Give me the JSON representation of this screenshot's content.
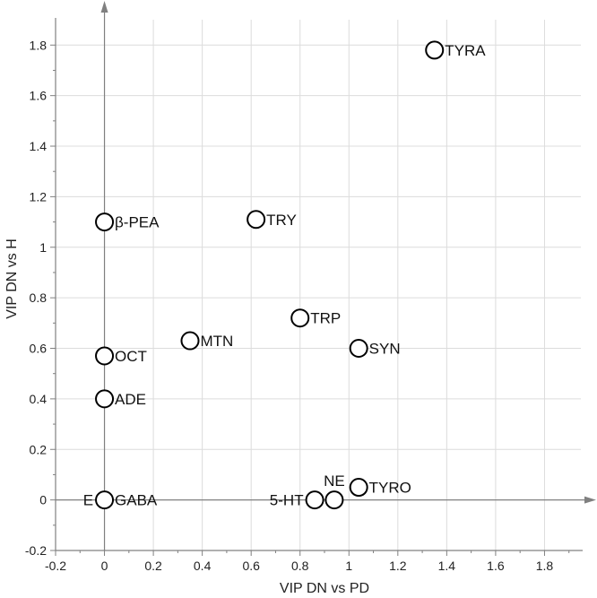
{
  "chart_data": {
    "type": "scatter",
    "xlabel": "VIP DN vs PD",
    "ylabel": "VIP DN vs H",
    "xlim": [
      -0.2,
      2.0
    ],
    "ylim": [
      -0.2,
      1.95
    ],
    "grid": true,
    "x_ticks": [
      -0.2,
      0,
      0.2,
      0.4,
      0.6,
      0.8,
      1,
      1.2,
      1.4,
      1.6,
      1.8
    ],
    "y_ticks": [
      -0.2,
      0,
      0.2,
      0.4,
      0.6,
      0.8,
      1,
      1.2,
      1.4,
      1.6,
      1.8
    ],
    "x_tick_labels": [
      "-0.2",
      "0",
      "0.2",
      "0.4",
      "0.6",
      "0.8",
      "1",
      "1.2",
      "1.4",
      "1.6",
      "1.8"
    ],
    "y_tick_labels": [
      "-0.2",
      "0",
      "0.2",
      "0.4",
      "0.6",
      "0.8",
      "1",
      "1.2",
      "1.4",
      "1.6",
      "1.8"
    ],
    "points": [
      {
        "label": "TYRA",
        "x": 1.35,
        "y": 1.78,
        "label_side": "right"
      },
      {
        "label": "β-PEA",
        "x": 0.0,
        "y": 1.1,
        "label_side": "right"
      },
      {
        "label": "TRY",
        "x": 0.62,
        "y": 1.11,
        "label_side": "right"
      },
      {
        "label": "TRP",
        "x": 0.8,
        "y": 0.72,
        "label_side": "right"
      },
      {
        "label": "MTN",
        "x": 0.35,
        "y": 0.63,
        "label_side": "right"
      },
      {
        "label": "SYN",
        "x": 1.04,
        "y": 0.6,
        "label_side": "right"
      },
      {
        "label": "OCT",
        "x": 0.0,
        "y": 0.57,
        "label_side": "right"
      },
      {
        "label": "ADE",
        "x": 0.0,
        "y": 0.4,
        "label_side": "right"
      },
      {
        "label": "GABA",
        "x": 0.0,
        "y": 0.0,
        "label_side": "right"
      },
      {
        "label": "E",
        "x": 0.0,
        "y": 0.0,
        "label_side": "left"
      },
      {
        "label": "5-HT",
        "x": 0.86,
        "y": 0.0,
        "label_side": "left"
      },
      {
        "label": "NE",
        "x": 0.94,
        "y": 0.0,
        "label_side": "above"
      },
      {
        "label": "TYRO",
        "x": 1.04,
        "y": 0.05,
        "label_side": "right"
      }
    ]
  }
}
